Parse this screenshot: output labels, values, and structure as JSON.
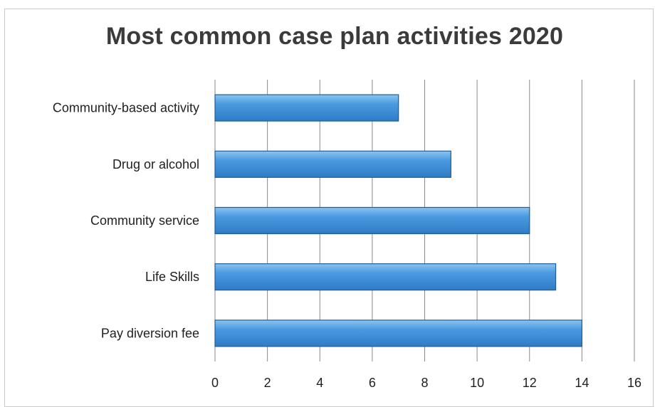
{
  "chart_data": {
    "type": "bar",
    "orientation": "horizontal",
    "title": "Most common case plan activities 2020",
    "xlabel": "",
    "ylabel": "",
    "categories": [
      "Community-based activity",
      "Drug or alcohol",
      "Community service",
      "Life Skills",
      "Pay diversion fee"
    ],
    "values": [
      7,
      9,
      12,
      13,
      14
    ],
    "xlim": [
      0,
      16
    ],
    "xticks": [
      "0",
      "2",
      "4",
      "6",
      "8",
      "10",
      "12",
      "14",
      "16"
    ],
    "grid": "vertical",
    "legend": "none",
    "bar_color": "#3d8fd6"
  }
}
